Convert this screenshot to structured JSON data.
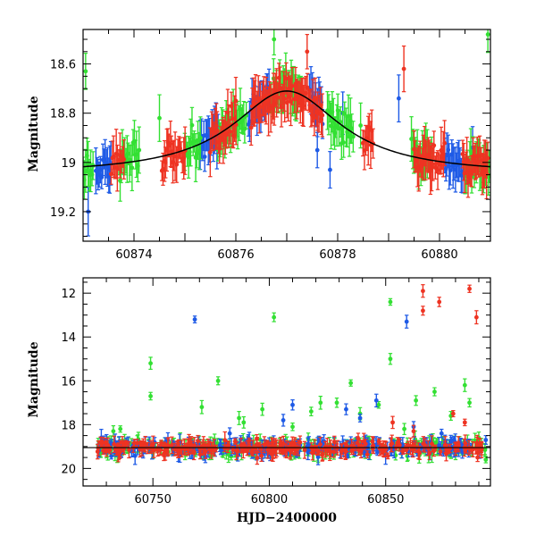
{
  "chart_data": [
    {
      "type": "scatter",
      "panel": "top",
      "title": "",
      "xlabel": "",
      "ylabel": "Magnitude",
      "xlim": [
        60873.0,
        60881.0
      ],
      "ylim": [
        19.32,
        18.46
      ],
      "y_inverted": true,
      "xticks": [
        60874,
        60876,
        60878,
        60880
      ],
      "yticks": [
        18.6,
        18.8,
        19.0,
        19.2
      ],
      "ytick_labels": [
        "18.6",
        "18.8",
        "19",
        "19.2"
      ],
      "grid": false,
      "legend": "none",
      "model_curve": {
        "type": "line",
        "color": "#000000",
        "peak_x": 60877.0,
        "peak_mag": 18.71,
        "base_mag": 19.05,
        "width_days": 1.3
      },
      "series": [
        {
          "color": "#1e5ae6",
          "segments": [
            [
              60873.25,
              60873.55
            ],
            [
              60875.3,
              60875.65
            ],
            [
              60876.25,
              60876.65
            ],
            [
              60877.45,
              60877.7
            ],
            [
              60880.1,
              60880.45
            ]
          ],
          "outliers": [
            [
              60879.2,
              18.74
            ],
            [
              60878.1,
              18.8
            ],
            [
              60877.85,
              19.03
            ],
            [
              60877.6,
              18.95
            ],
            [
              60873.1,
              19.2
            ],
            [
              60880.65,
              18.94
            ]
          ]
        },
        {
          "color": "#33e033",
          "segments": [
            [
              60873.0,
              60873.2
            ],
            [
              60873.7,
              60874.1
            ],
            [
              60875.0,
              60875.3
            ],
            [
              60875.65,
              60876.2
            ],
            [
              60876.7,
              60877.3
            ],
            [
              60877.8,
              60878.3
            ],
            [
              60879.45,
              60879.85
            ],
            [
              60880.5,
              60881.0
            ]
          ],
          "outliers": [
            [
              60873.05,
              18.63
            ],
            [
              60874.5,
              18.82
            ],
            [
              60876.75,
              18.5
            ],
            [
              60878.45,
              18.85
            ],
            [
              60880.95,
              18.48
            ]
          ]
        },
        {
          "color": "#ee3322",
          "segments": [
            [
              60873.55,
              60873.8
            ],
            [
              60874.55,
              60875.0
            ],
            [
              60875.5,
              60876.0
            ],
            [
              60876.3,
              60877.1
            ],
            [
              60877.15,
              60877.7
            ],
            [
              60878.5,
              60878.7
            ],
            [
              60879.5,
              60880.1
            ],
            [
              60880.45,
              60880.95
            ]
          ],
          "outliers": [
            [
              60879.3,
              18.62
            ],
            [
              60877.4,
              18.55
            ],
            [
              60876.0,
              18.75
            ]
          ]
        }
      ]
    },
    {
      "type": "scatter",
      "panel": "bottom",
      "title": "",
      "xlabel": "HJD−2400000",
      "ylabel": "Magnitude",
      "xlim": [
        60720,
        60895
      ],
      "ylim": [
        20.8,
        11.3
      ],
      "y_inverted": true,
      "xticks": [
        60750,
        60800,
        60850
      ],
      "yticks": [
        12,
        14,
        16,
        18,
        20
      ],
      "ytick_labels": [
        "12",
        "14",
        "16",
        "18",
        "20"
      ],
      "grid": false,
      "legend": "none",
      "baseline": {
        "x_range": [
          60726,
          60893
        ],
        "mag": 19.05
      },
      "series": [
        {
          "color": "#33e033",
          "outliers": [
            [
              60733,
              18.3
            ],
            [
              60736,
              18.2
            ],
            [
              60749,
              15.2
            ],
            [
              60749,
              16.7
            ],
            [
              60762,
              19.2
            ],
            [
              60771,
              17.2
            ],
            [
              60778,
              16.0
            ],
            [
              60787,
              17.7
            ],
            [
              60789,
              17.9
            ],
            [
              60797,
              17.3
            ],
            [
              60802,
              13.1
            ],
            [
              60810,
              18.1
            ],
            [
              60818,
              17.4
            ],
            [
              60822,
              17.0
            ],
            [
              60829,
              17.0
            ],
            [
              60835,
              16.1
            ],
            [
              60839,
              17.5
            ],
            [
              60847,
              17.1
            ],
            [
              60852,
              12.4
            ],
            [
              60852,
              15.0
            ],
            [
              60858,
              18.2
            ],
            [
              60863,
              16.9
            ],
            [
              60871,
              16.5
            ],
            [
              60878,
              17.6
            ],
            [
              60884,
              16.2
            ],
            [
              60886,
              17.0
            ],
            [
              60890,
              18.6
            ],
            [
              60893,
              19.6
            ]
          ]
        },
        {
          "color": "#1e5ae6",
          "outliers": [
            [
              60768,
              13.2
            ],
            [
              60783,
              18.4
            ],
            [
              60791,
              18.6
            ],
            [
              60806,
              17.8
            ],
            [
              60810,
              17.1
            ],
            [
              60833,
              17.3
            ],
            [
              60839,
              17.7
            ],
            [
              60846,
              16.9
            ],
            [
              60859,
              13.3
            ],
            [
              60862,
              18.1
            ],
            [
              60874,
              18.4
            ],
            [
              60893,
              18.7
            ]
          ]
        },
        {
          "color": "#ee3322",
          "outliers": [
            [
              60866,
              11.9
            ],
            [
              60866,
              12.8
            ],
            [
              60873,
              12.4
            ],
            [
              60886,
              11.8
            ],
            [
              60889,
              13.1
            ],
            [
              60853,
              17.9
            ],
            [
              60862,
              18.3
            ],
            [
              60879,
              17.5
            ],
            [
              60884,
              17.9
            ]
          ]
        }
      ]
    }
  ]
}
